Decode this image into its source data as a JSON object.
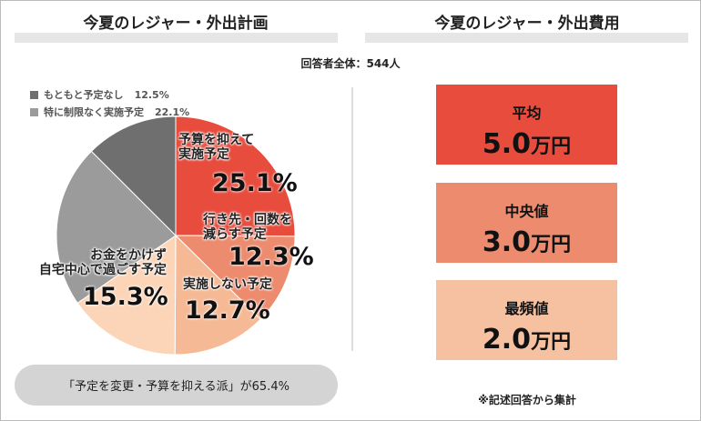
{
  "chart_data": {
    "type": "pie",
    "title": "今夏のレジャー・外出計画",
    "subtitle": "回答者全体：544人",
    "categories": [
      "予算を抑えて\n実施予定",
      "行き先・回数を\n減らす予定",
      "実施しない予定",
      "お金をかけず\n自宅中心で過ごす予定",
      "特に制限なく実施予定",
      "もともと予定なし"
    ],
    "values": [
      25.1,
      12.3,
      12.7,
      15.3,
      22.1,
      12.5
    ],
    "value_labels": [
      "25.1%",
      "12.3%",
      "12.7%",
      "15.3%",
      "22.1%",
      "12.5%"
    ],
    "colors": [
      "#e84c3d",
      "#ec8b6d",
      "#f6b995",
      "#fcd5b8",
      "#9b9b9b",
      "#6f6f6f"
    ],
    "summary": "「予定を変更・予算を抑える派」が65.4%"
  },
  "costs": {
    "title": "今夏のレジャー・外出費用",
    "items": [
      {
        "label": "平均",
        "value": "5.0",
        "unit": "万円",
        "color": "#e84c3d"
      },
      {
        "label": "中央値",
        "value": "3.0",
        "unit": "万円",
        "color": "#ec8b6d"
      },
      {
        "label": "最頻値",
        "value": "2.0",
        "unit": "万円",
        "color": "#f6c1a1"
      }
    ],
    "note": "※記述回答から集計"
  }
}
